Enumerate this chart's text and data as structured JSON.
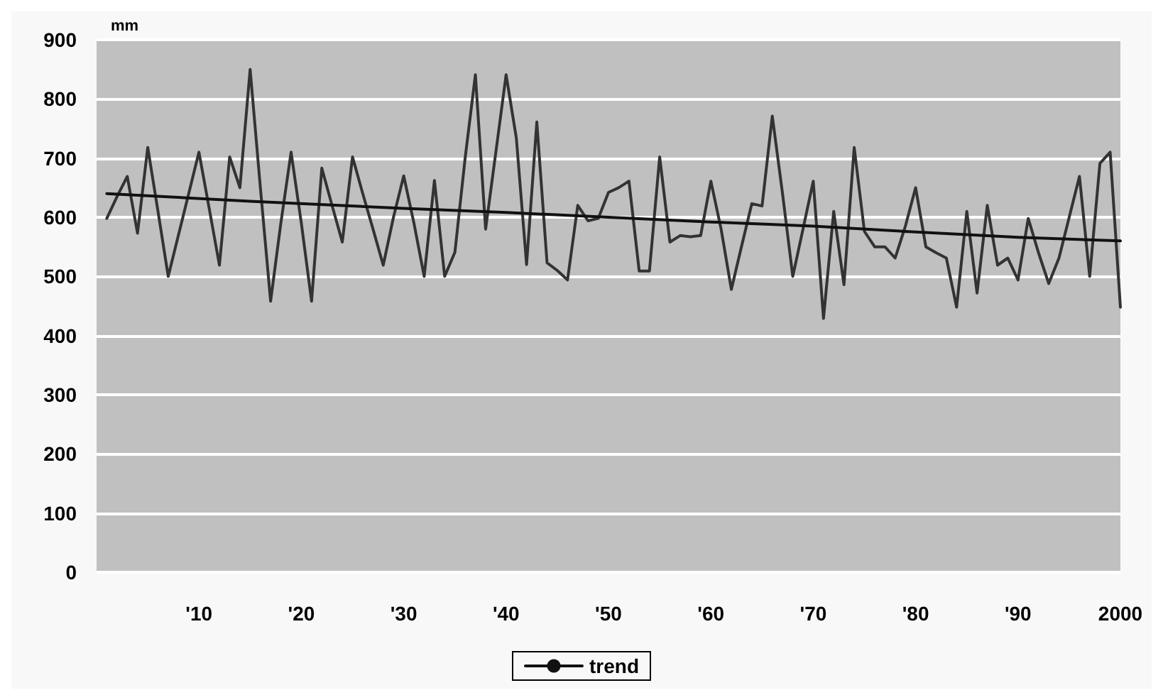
{
  "chart_data": {
    "type": "line",
    "ylabel": "mm",
    "x": [
      1901,
      1902,
      1903,
      1904,
      1905,
      1906,
      1907,
      1908,
      1909,
      1910,
      1911,
      1912,
      1913,
      1914,
      1915,
      1916,
      1917,
      1918,
      1919,
      1920,
      1921,
      1922,
      1923,
      1924,
      1925,
      1926,
      1927,
      1928,
      1929,
      1930,
      1931,
      1932,
      1933,
      1934,
      1935,
      1936,
      1937,
      1938,
      1939,
      1940,
      1941,
      1942,
      1943,
      1944,
      1945,
      1946,
      1947,
      1948,
      1949,
      1950,
      1951,
      1952,
      1953,
      1954,
      1955,
      1956,
      1957,
      1958,
      1959,
      1960,
      1961,
      1962,
      1963,
      1964,
      1965,
      1966,
      1967,
      1968,
      1969,
      1970,
      1971,
      1972,
      1973,
      1974,
      1975,
      1976,
      1977,
      1978,
      1979,
      1980,
      1981,
      1982,
      1983,
      1984,
      1985,
      1986,
      1987,
      1988,
      1989,
      1990,
      1991,
      1992,
      1993,
      1994,
      1995,
      1996,
      1997,
      1998,
      1999,
      2000
    ],
    "series": [
      {
        "color": "#333333",
        "values": [
          598,
          635,
          669,
          573,
          718,
          610,
          500,
          570,
          640,
          710,
          615,
          519,
          702,
          650,
          850,
          650,
          458,
          590,
          710,
          590,
          458,
          683,
          620,
          558,
          702,
          640,
          580,
          519,
          600,
          670,
          590,
          500,
          662,
          500,
          541,
          700,
          841,
          580,
          710,
          841,
          734,
          520,
          761,
          523,
          510,
          494,
          620,
          594,
          598,
          642,
          650,
          661,
          509,
          509,
          702,
          558,
          569,
          567,
          569,
          661,
          580,
          478,
          551,
          623,
          619,
          771,
          640,
          500,
          580,
          661,
          429,
          610,
          486,
          718,
          576,
          550,
          550,
          531,
          585,
          650,
          550,
          540,
          531,
          448,
          610,
          472,
          620,
          519,
          531,
          494,
          598,
          540,
          488,
          531,
          600,
          669,
          500,
          691,
          710,
          448
        ]
      },
      {
        "name": "trend",
        "color": "#111111",
        "x": [
          1901,
          1915,
          1930,
          1940,
          1950,
          1960,
          1970,
          1980,
          1990,
          2000
        ],
        "values": [
          640,
          627,
          615,
          608,
          600,
          592,
          585,
          575,
          566,
          560
        ]
      }
    ],
    "xlim": [
      1900,
      2000
    ],
    "xticks": [
      {
        "value": 1910,
        "label": "'10"
      },
      {
        "value": 1920,
        "label": "'20"
      },
      {
        "value": 1930,
        "label": "'30"
      },
      {
        "value": 1940,
        "label": "'40"
      },
      {
        "value": 1950,
        "label": "'50"
      },
      {
        "value": 1960,
        "label": "'60"
      },
      {
        "value": 1970,
        "label": "'70"
      },
      {
        "value": 1980,
        "label": "'80"
      },
      {
        "value": 1990,
        "label": "'90"
      },
      2000
    ],
    "ylim": [
      0,
      900
    ],
    "yticks": [
      0,
      100,
      200,
      300,
      400,
      500,
      600,
      700,
      800,
      900
    ],
    "grid": "y",
    "legend": "bottom",
    "marker": "none",
    "line_style": "solid"
  }
}
